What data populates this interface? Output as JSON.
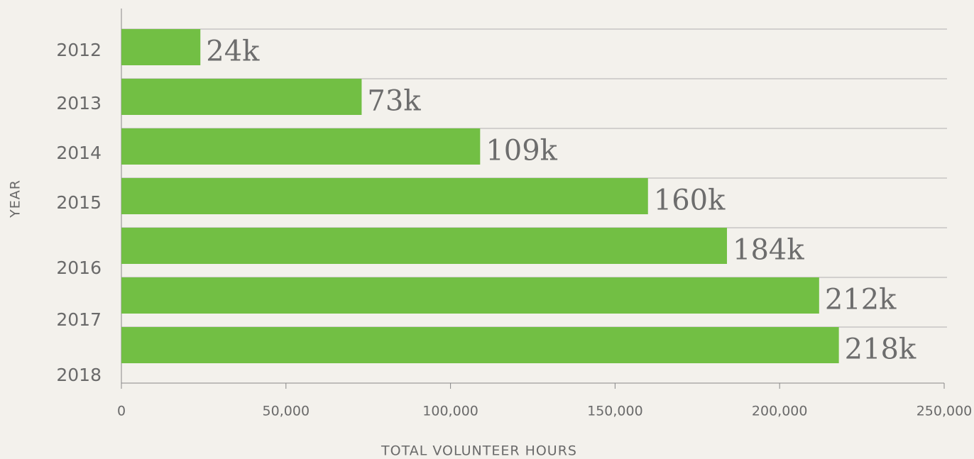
{
  "chart_data": {
    "type": "barh",
    "categories": [
      "2012",
      "2013",
      "2014",
      "2015",
      "2016",
      "2017",
      "2018"
    ],
    "values": [
      24000,
      73000,
      109000,
      160000,
      184000,
      212000,
      218000
    ],
    "value_labels": [
      "24k",
      "73k",
      "109k",
      "160k",
      "184k",
      "212k",
      "218k"
    ],
    "color": "#72bf44",
    "xlim": [
      0,
      250000
    ],
    "xticks": [
      0,
      {
        "value": 50000,
        "label": "50,000"
      },
      {
        "value": 100000,
        "label": "100,000"
      },
      {
        "value": 150000,
        "label": "150,000"
      },
      {
        "value": 200000,
        "label": "200,000"
      },
      {
        "value": 250000,
        "label": "250,000"
      }
    ],
    "xlabel": "TOTAL VOLUNTEER HOURS",
    "ylabel": "YEAR",
    "grid": true
  }
}
